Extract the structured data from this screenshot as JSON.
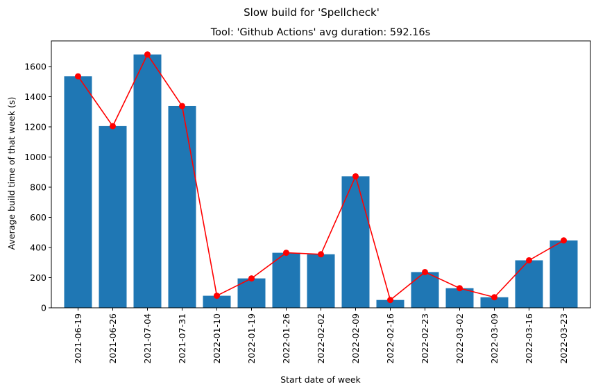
{
  "suptitle": "Slow build for 'Spellcheck'",
  "chart_data": {
    "type": "bar",
    "title": "Tool: 'Github Actions' avg duration: 592.16s",
    "xlabel": "Start date of week",
    "ylabel": "Average build time of that week (s)",
    "categories": [
      "2021-06-19",
      "2021-06-26",
      "2021-07-04",
      "2021-07-31",
      "2022-01-10",
      "2022-01-19",
      "2022-01-26",
      "2022-02-02",
      "2022-02-09",
      "2022-02-16",
      "2022-02-23",
      "2022-03-02",
      "2022-03-09",
      "2022-03-16",
      "2022-03-23"
    ],
    "values": [
      1535,
      1205,
      1680,
      1338,
      80,
      195,
      365,
      355,
      872,
      52,
      237,
      130,
      70,
      315,
      447
    ],
    "ylim": [
      0,
      1770
    ],
    "yticks": [
      0,
      200,
      400,
      600,
      800,
      1000,
      1200,
      1400,
      1600
    ],
    "grid": false,
    "bar_color": "#1f77b4",
    "line_color": "#ff0000",
    "overlay": "line with circle markers over the same values"
  }
}
